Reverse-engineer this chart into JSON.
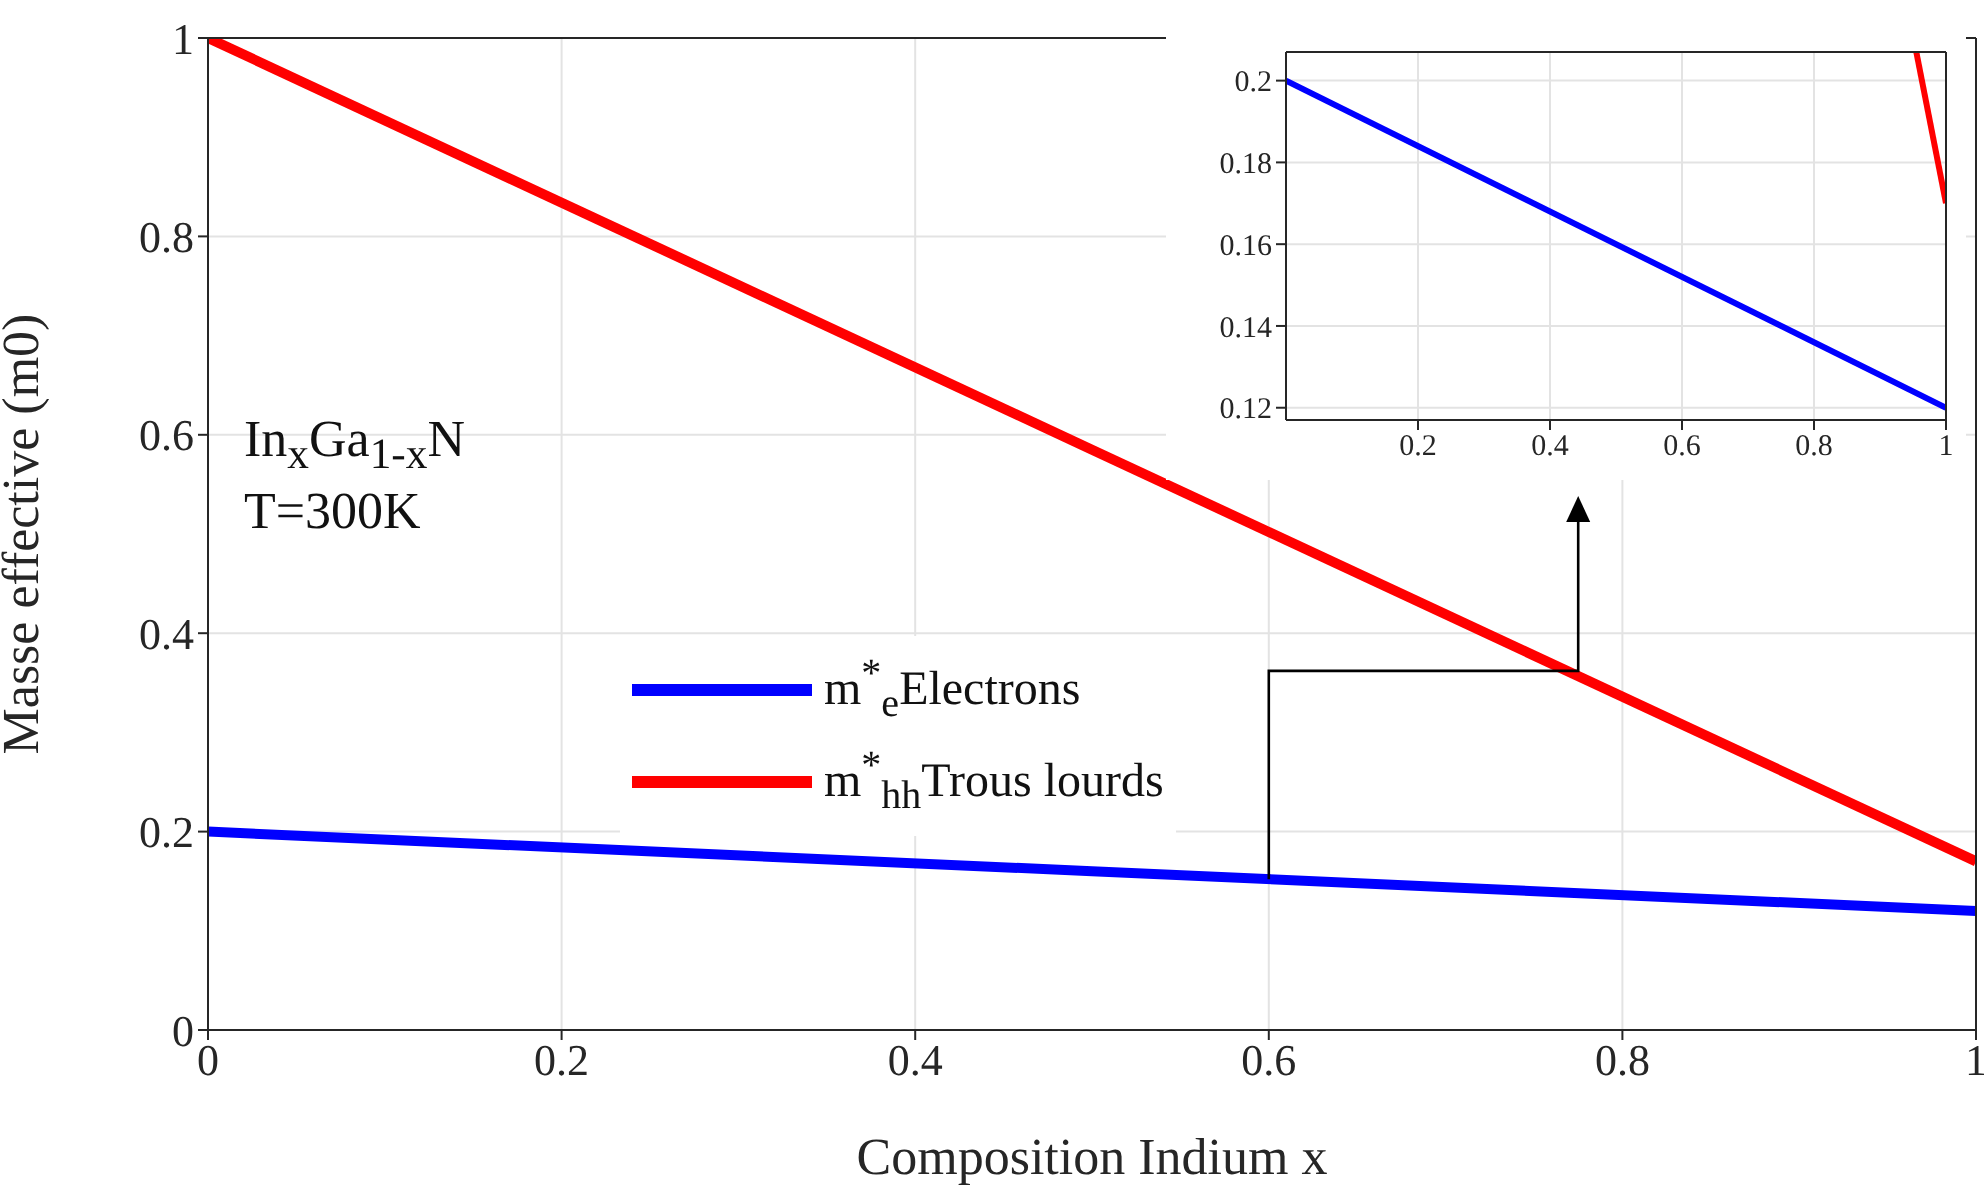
{
  "chart_data": [
    {
      "type": "line",
      "xlabel": "Composition Indium x",
      "ylabel": "Masse effective (m0)",
      "xlim": [
        0,
        1
      ],
      "ylim": [
        0,
        1
      ],
      "xticks": [
        0,
        0.2,
        0.4,
        0.6,
        0.8,
        1
      ],
      "yticks": [
        0,
        0.2,
        0.4,
        0.6,
        0.8,
        1
      ],
      "grid": true,
      "legend": "left",
      "marker": "none",
      "annotations": [
        "In$_{x}$Ga$_{1-x}$N",
        "T=300K"
      ],
      "series": [
        {
          "name": "m$^{*}$$_{e}$Electrons",
          "color": "#0000ff",
          "x": [
            0,
            0.5,
            1
          ],
          "values": [
            0.2,
            0.16,
            0.12
          ]
        },
        {
          "name": "m$^{*}$$_{hh}$Trous lourds",
          "color": "#ff0000",
          "x": [
            0,
            0.5,
            1
          ],
          "values": [
            1,
            0.585,
            0.17
          ]
        }
      ]
    },
    {
      "type": "line",
      "xlim": [
        0,
        1
      ],
      "ylim": [
        0.117,
        0.207
      ],
      "xticks": [
        0.2,
        0.4,
        0.6,
        0.8,
        1
      ],
      "yticks": [
        0.12,
        0.14,
        0.16,
        0.18,
        0.2
      ],
      "grid": true,
      "marker": "none",
      "series": [
        {
          "color": "#0000ff",
          "x": [
            0,
            1
          ],
          "values": [
            0.2,
            0.12
          ]
        },
        {
          "color": "#ff0000",
          "x": [
            0.955,
            1
          ],
          "values": [
            0.207,
            0.17
          ]
        }
      ]
    }
  ]
}
